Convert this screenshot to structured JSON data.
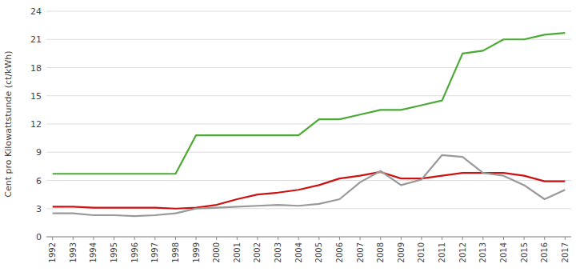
{
  "chart_data": {
    "type": "line",
    "ylabel": "Cent pro Kilowattstunde (ct/kWh)",
    "x": [
      1992,
      1993,
      1994,
      1995,
      1996,
      1997,
      1998,
      1999,
      2000,
      2001,
      2002,
      2003,
      2004,
      2005,
      2006,
      2007,
      2008,
      2009,
      2010,
      2011,
      2012,
      2013,
      2014,
      2015,
      2016,
      2017
    ],
    "series": [
      {
        "color": "#4aaa34",
        "values": [
          6.7,
          6.7,
          6.7,
          6.7,
          6.7,
          6.7,
          6.7,
          10.8,
          10.8,
          10.8,
          10.8,
          10.8,
          10.8,
          12.5,
          12.5,
          13.0,
          13.5,
          13.5,
          14.0,
          14.5,
          19.5,
          19.8,
          21.0,
          21.0,
          21.5,
          21.7
        ]
      },
      {
        "color": "#cc1111",
        "values": [
          3.2,
          3.2,
          3.1,
          3.1,
          3.1,
          3.1,
          3.0,
          3.1,
          3.4,
          4.0,
          4.5,
          4.7,
          5.0,
          5.5,
          6.2,
          6.5,
          6.9,
          6.2,
          6.2,
          6.5,
          6.8,
          6.8,
          6.8,
          6.5,
          5.9,
          5.9
        ]
      },
      {
        "color": "#999999",
        "values": [
          2.5,
          2.5,
          2.3,
          2.3,
          2.2,
          2.3,
          2.5,
          3.0,
          3.1,
          3.2,
          3.3,
          3.4,
          3.3,
          3.5,
          4.0,
          5.8,
          7.0,
          5.5,
          6.1,
          8.7,
          8.5,
          6.8,
          6.5,
          5.5,
          4.0,
          5.0
        ]
      }
    ],
    "xlim": [
      1991.7,
      2017.3
    ],
    "xticks": [
      1992,
      1993,
      1994,
      1995,
      1996,
      1997,
      1998,
      1999,
      2000,
      2001,
      2002,
      2003,
      2004,
      2005,
      2006,
      2007,
      2008,
      2009,
      2010,
      2011,
      2012,
      2013,
      2014,
      2015,
      2016,
      2017
    ],
    "ylim": [
      0,
      24
    ],
    "yticks": [
      0,
      3,
      6,
      9,
      12,
      15,
      18,
      21,
      24
    ],
    "grid": true
  }
}
